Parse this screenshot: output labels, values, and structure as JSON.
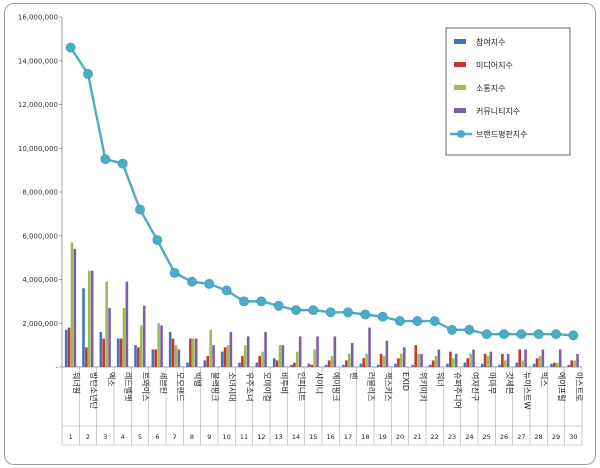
{
  "chart_data": {
    "type": "bar",
    "y_ticks": [
      "-",
      "2,000,000",
      "4,000,000",
      "6,000,000",
      "8,000,000",
      "10,000,000",
      "12,000,000",
      "14,000,000",
      "16,000,000"
    ],
    "ylim": [
      0,
      16000000
    ],
    "categories": [
      "워너원",
      "방탄소년단",
      "엑소",
      "레드벨벳",
      "트와이스",
      "세븐틴",
      "모모랜드",
      "빅뱅",
      "블랙핑크",
      "소녀시대",
      "우주소녀",
      "오마이걸",
      "비투비",
      "인피니트",
      "샤이니",
      "에이핑크",
      "펜",
      "러블리즈",
      "젝스키스",
      "EXID",
      "위키미키",
      "워너",
      "슈퍼주니어",
      "여자친구",
      "마마무",
      "갓세븐",
      "뉴이스트W",
      "빅스",
      "에이프릴",
      "아스트로"
    ],
    "indices": [
      "1",
      "2",
      "3",
      "4",
      "5",
      "6",
      "7",
      "8",
      "9",
      "10",
      "11",
      "12",
      "13",
      "14",
      "15",
      "16",
      "17",
      "18",
      "19",
      "20",
      "21",
      "22",
      "23",
      "24",
      "25",
      "26",
      "27",
      "28",
      "29",
      "30"
    ],
    "legend_position": "top-right",
    "grid": false,
    "series": [
      {
        "name": "참여지수",
        "kind": "bar",
        "color": "#4472c4",
        "values": [
          1700000,
          3600000,
          1600000,
          1300000,
          1000000,
          800000,
          1600000,
          200000,
          300000,
          700000,
          200000,
          200000,
          400000,
          100000,
          150000,
          100000,
          100000,
          150000,
          100000,
          150000,
          100000,
          100000,
          150000,
          200000,
          150000,
          100000,
          200000,
          150000,
          150000,
          100000
        ]
      },
      {
        "name": "미디어지수",
        "kind": "bar",
        "color": "#c0392b",
        "values": [
          1800000,
          900000,
          1300000,
          1300000,
          900000,
          800000,
          1300000,
          1300000,
          500000,
          900000,
          500000,
          500000,
          300000,
          200000,
          100000,
          300000,
          300000,
          400000,
          600000,
          400000,
          1000000,
          300000,
          700000,
          400000,
          600000,
          600000,
          800000,
          400000,
          200000,
          300000
        ]
      },
      {
        "name": "소통지수",
        "kind": "bar",
        "color": "#9bbb59",
        "values": [
          5700000,
          4400000,
          3900000,
          2700000,
          1900000,
          2000000,
          1000000,
          1300000,
          1700000,
          1000000,
          1000000,
          700000,
          1000000,
          700000,
          800000,
          500000,
          600000,
          600000,
          500000,
          600000,
          600000,
          500000,
          400000,
          600000,
          500000,
          300000,
          300000,
          500000,
          200000,
          300000
        ]
      },
      {
        "name": "커뮤니티지수",
        "kind": "bar",
        "color": "#7e5fa6",
        "values": [
          5400000,
          4400000,
          2700000,
          3900000,
          2800000,
          1900000,
          800000,
          1300000,
          1000000,
          1600000,
          1400000,
          1600000,
          1000000,
          1400000,
          1400000,
          1400000,
          1100000,
          1800000,
          1200000,
          900000,
          600000,
          800000,
          600000,
          800000,
          700000,
          600000,
          800000,
          800000,
          800000,
          600000
        ]
      },
      {
        "name": "브랜드평판지수",
        "kind": "line",
        "color": "#4bacc6",
        "values": [
          14600000,
          13400000,
          9500000,
          9300000,
          7200000,
          5800000,
          4300000,
          3900000,
          3800000,
          3500000,
          3000000,
          3000000,
          2800000,
          2600000,
          2600000,
          2500000,
          2500000,
          2400000,
          2300000,
          2100000,
          2100000,
          2100000,
          1700000,
          1700000,
          1500000,
          1500000,
          1500000,
          1500000,
          1500000,
          1450000
        ]
      }
    ]
  }
}
